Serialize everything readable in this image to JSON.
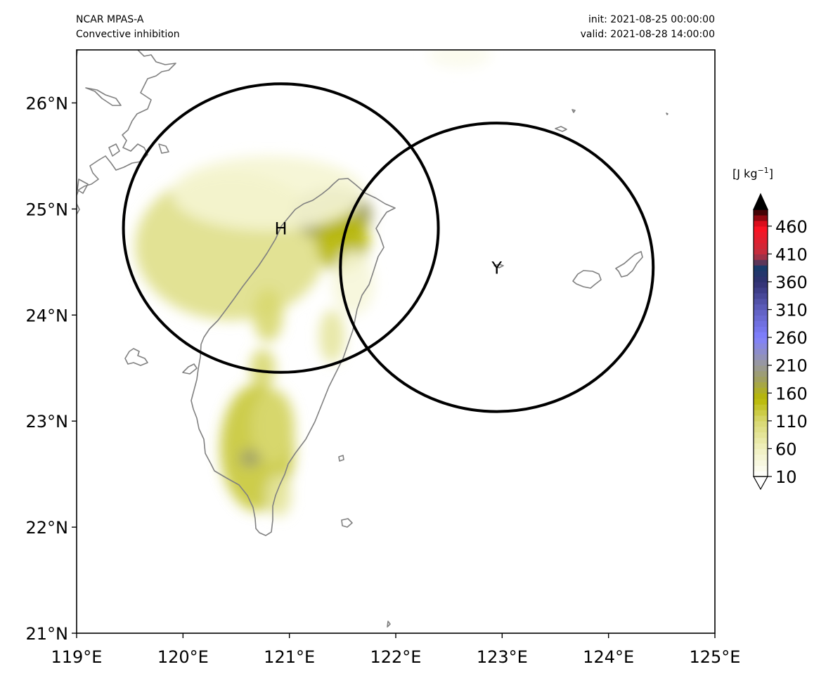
{
  "header": {
    "model": "NCAR MPAS-A",
    "field": "Convective inhibition",
    "init": "init: 2021-08-25 00:00:00",
    "valid": "valid: 2021-08-28 14:00:00"
  },
  "map": {
    "lon_range": [
      119,
      125
    ],
    "lat_range": [
      21,
      26.5
    ],
    "lon_ticks": [
      119,
      120,
      121,
      122,
      123,
      124,
      125
    ],
    "lon_tick_labels": [
      "119°E",
      "120°E",
      "121°E",
      "122°E",
      "123°E",
      "124°E",
      "125°E"
    ],
    "lat_ticks": [
      21,
      22,
      23,
      24,
      25,
      26
    ],
    "lat_tick_labels": [
      "21°N",
      "22°N",
      "23°N",
      "24°N",
      "25°N",
      "26°N"
    ],
    "coastline_color": "#808080",
    "markers": [
      {
        "label": "H",
        "lon": 120.92,
        "lat": 24.82,
        "ring_lon_radius": 1.48,
        "ring_lat_radius": 1.36
      },
      {
        "label": "Y",
        "lon": 122.95,
        "lat": 24.45,
        "ring_lon_radius": 1.47,
        "ring_lat_radius": 1.36
      }
    ],
    "field_blobs": [
      {
        "lon": 120.45,
        "lat": 24.65,
        "rlon": 0.9,
        "rlat": 0.7,
        "value": 95
      },
      {
        "lon": 121.4,
        "lat": 24.95,
        "rlon": 0.38,
        "rlat": 0.25,
        "value": 185
      },
      {
        "lon": 121.5,
        "lat": 24.7,
        "rlon": 0.25,
        "rlat": 0.3,
        "value": 150
      },
      {
        "lon": 120.8,
        "lat": 25.15,
        "rlon": 0.9,
        "rlat": 0.35,
        "value": 45
      },
      {
        "lon": 120.8,
        "lat": 24.0,
        "rlon": 0.14,
        "rlat": 0.25,
        "value": 110
      },
      {
        "lon": 121.4,
        "lat": 23.8,
        "rlon": 0.12,
        "rlat": 0.25,
        "value": 80
      },
      {
        "lon": 120.75,
        "lat": 23.5,
        "rlon": 0.12,
        "rlat": 0.18,
        "value": 110
      },
      {
        "lon": 120.7,
        "lat": 22.75,
        "rlon": 0.35,
        "rlat": 0.6,
        "value": 130
      },
      {
        "lon": 120.63,
        "lat": 22.65,
        "rlon": 0.1,
        "rlat": 0.08,
        "value": 190
      },
      {
        "lon": 120.85,
        "lat": 22.95,
        "rlon": 0.2,
        "rlat": 0.35,
        "value": 110
      },
      {
        "lon": 120.9,
        "lat": 22.3,
        "rlon": 0.12,
        "rlat": 0.2,
        "value": 80
      },
      {
        "lon": 121.6,
        "lat": 24.3,
        "rlon": 0.2,
        "rlat": 0.3,
        "value": 40
      },
      {
        "lon": 122.6,
        "lat": 26.45,
        "rlon": 0.3,
        "rlat": 0.12,
        "value": 25
      }
    ]
  },
  "colorbar": {
    "units": "[J kg",
    "units_exp": "−1",
    "units_close": "]",
    "ticks": [
      "10",
      "60",
      "110",
      "160",
      "210",
      "260",
      "310",
      "360",
      "410",
      "460"
    ],
    "levels": [
      10,
      60,
      110,
      160,
      210,
      260,
      310,
      360,
      410,
      460,
      490
    ],
    "stops": [
      {
        "v": 10,
        "c": "#ffffff"
      },
      {
        "v": 60,
        "c": "#f0f0c0"
      },
      {
        "v": 110,
        "c": "#d8d870"
      },
      {
        "v": 150,
        "c": "#b8b800"
      },
      {
        "v": 185,
        "c": "#a0a060"
      },
      {
        "v": 210,
        "c": "#999999"
      },
      {
        "v": 260,
        "c": "#8080ff"
      },
      {
        "v": 310,
        "c": "#6060c0"
      },
      {
        "v": 360,
        "c": "#303070"
      },
      {
        "v": 385,
        "c": "#1a3a6a"
      },
      {
        "v": 410,
        "c": "#c03040"
      },
      {
        "v": 460,
        "c": "#ff1020"
      },
      {
        "v": 490,
        "c": "#200000"
      }
    ]
  }
}
